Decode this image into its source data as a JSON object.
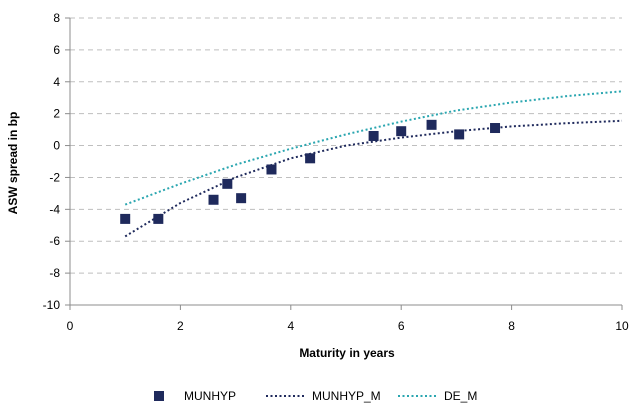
{
  "chart_data": {
    "type": "scatter",
    "title": "",
    "xlabel": "Maturity in years",
    "ylabel": "ASW spread in bp",
    "xlim": [
      0,
      10
    ],
    "ylim": [
      -10,
      8
    ],
    "xticks": [
      0,
      2,
      4,
      6,
      8,
      10
    ],
    "yticks": [
      -10,
      -8,
      -6,
      -4,
      -2,
      0,
      2,
      4,
      6,
      8
    ],
    "grid": "horizontal dashed",
    "legend_position": "bottom",
    "series": [
      {
        "name": "MUNHYP",
        "kind": "scatter",
        "marker": "square",
        "color": "#1f2a5c",
        "x": [
          1.0,
          1.6,
          2.6,
          2.85,
          3.1,
          3.65,
          4.35,
          5.5,
          6.0,
          6.55,
          7.05,
          7.7
        ],
        "y": [
          -4.6,
          -4.6,
          -3.4,
          -2.4,
          -3.3,
          -1.5,
          -0.8,
          0.6,
          0.9,
          1.3,
          0.7,
          1.1
        ]
      },
      {
        "name": "MUNHYP_M",
        "kind": "line",
        "dash": "dotted",
        "color": "#1f2a5c",
        "x": [
          1,
          2,
          3,
          4,
          5,
          6,
          7,
          8,
          9,
          10
        ],
        "y": [
          -5.7,
          -3.6,
          -2.0,
          -0.8,
          0.0,
          0.5,
          0.9,
          1.2,
          1.4,
          1.55
        ]
      },
      {
        "name": "DE_M",
        "kind": "line",
        "dash": "dotted",
        "color": "#2aa6b0",
        "x": [
          1,
          2,
          3,
          4,
          5,
          6,
          7,
          8,
          9,
          10
        ],
        "y": [
          -3.7,
          -2.4,
          -1.2,
          -0.2,
          0.7,
          1.5,
          2.2,
          2.7,
          3.1,
          3.4
        ]
      }
    ]
  }
}
